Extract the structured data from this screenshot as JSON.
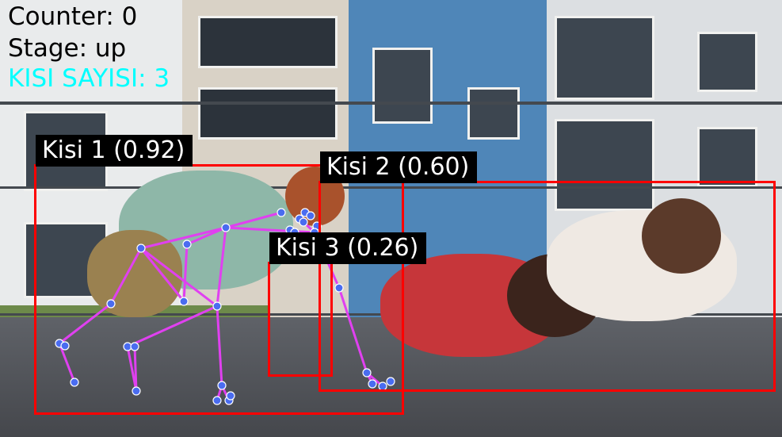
{
  "hud": {
    "counter_label": "Counter:",
    "counter_value": "0",
    "stage_label": "Stage:",
    "stage_value": "up",
    "people_label": "KISI SAYISI:",
    "people_value": "3"
  },
  "detections": [
    {
      "label": "Kisi 1 (0.92)",
      "person": "Kisi 1",
      "confidence": 0.92
    },
    {
      "label": "Kisi 2 (0.60)",
      "person": "Kisi 2",
      "confidence": 0.6
    },
    {
      "label": "Kisi 3 (0.26)",
      "person": "Kisi 3",
      "confidence": 0.26
    }
  ],
  "colors": {
    "box": "#ff0000",
    "label_bg": "#000000",
    "label_text": "#ffffff",
    "hud_text": "#000000",
    "hud_count": "#00ffff",
    "skeleton_line": "#e040f0",
    "keypoint": "#4a6cf0"
  }
}
